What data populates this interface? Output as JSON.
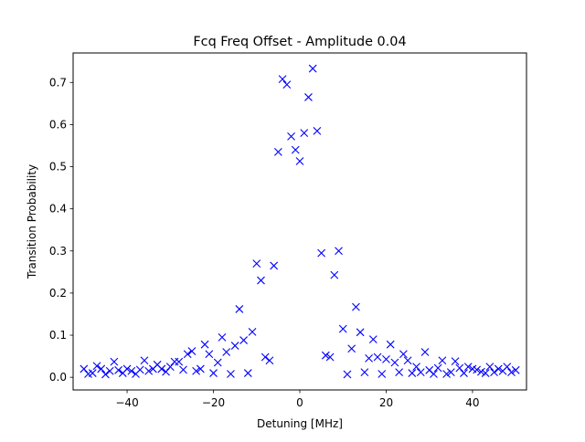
{
  "chart_data": {
    "type": "scatter",
    "title": "Fcq Freq Offset - Amplitude 0.04",
    "xlabel": "Detuning [MHz]",
    "ylabel": "Transition Probability",
    "xlim": [
      -52.5,
      52.5
    ],
    "ylim": [
      -0.03,
      0.77
    ],
    "xticks": [
      -40,
      -20,
      0,
      20,
      40
    ],
    "xtick_labels": [
      "−40",
      "−20",
      "0",
      "20",
      "40"
    ],
    "yticks": [
      0.0,
      0.1,
      0.2,
      0.3,
      0.4,
      0.5,
      0.6,
      0.7
    ],
    "ytick_labels": [
      "0.0",
      "0.1",
      "0.2",
      "0.3",
      "0.4",
      "0.5",
      "0.6",
      "0.7"
    ],
    "grid": false,
    "marker": "x",
    "marker_color": "#0000ff",
    "series": [
      {
        "x": [
          -50.0,
          -49.0,
          -48.0,
          -47.0,
          -46.0,
          -45.0,
          -44.0,
          -43.0,
          -42.0,
          -41.0,
          -40.0,
          -39.0,
          -38.0,
          -37.0,
          -36.0,
          -35.0,
          -34.0,
          -33.0,
          -32.0,
          -31.0,
          -30.0,
          -29.0,
          -28.0,
          -27.0,
          -26.0,
          -25.0,
          -24.0,
          -23.0,
          -22.0,
          -21.0,
          -20.0,
          -19.0,
          -18.0,
          -17.0,
          -16.0,
          -15.0,
          -14.0,
          -13.0,
          -12.0,
          -11.0,
          -10.0,
          -9.0,
          -8.0,
          -7.0,
          -6.0,
          -5.0,
          -4.0,
          -3.0,
          -2.0,
          -1.0,
          0.0,
          1.0,
          2.0,
          3.0,
          4.0,
          5.0,
          6.0,
          7.0,
          8.0,
          9.0,
          10.0,
          11.0,
          12.0,
          13.0,
          14.0,
          15.0,
          16.0,
          17.0,
          18.0,
          19.0,
          20.0,
          21.0,
          22.0,
          23.0,
          24.0,
          25.0,
          26.0,
          27.0,
          28.0,
          29.0,
          30.0,
          31.0,
          32.0,
          33.0,
          34.0,
          35.0,
          36.0,
          37.0,
          38.0,
          39.0,
          40.0,
          41.0,
          42.0,
          43.0,
          44.0,
          45.0,
          46.0,
          47.0,
          48.0,
          49.0,
          50.0
        ],
        "y": [
          0.02,
          0.008,
          0.01,
          0.027,
          0.02,
          0.007,
          0.015,
          0.037,
          0.017,
          0.01,
          0.02,
          0.015,
          0.008,
          0.018,
          0.04,
          0.015,
          0.02,
          0.03,
          0.02,
          0.013,
          0.025,
          0.037,
          0.037,
          0.018,
          0.055,
          0.062,
          0.015,
          0.02,
          0.078,
          0.055,
          0.01,
          0.035,
          0.095,
          0.06,
          0.008,
          0.075,
          0.162,
          0.088,
          0.01,
          0.108,
          0.27,
          0.23,
          0.048,
          0.04,
          0.265,
          0.535,
          0.708,
          0.695,
          0.572,
          0.54,
          0.513,
          0.58,
          0.665,
          0.733,
          0.585,
          0.295,
          0.052,
          0.048,
          0.243,
          0.3,
          0.115,
          0.007,
          0.068,
          0.167,
          0.107,
          0.012,
          0.045,
          0.09,
          0.048,
          0.008,
          0.043,
          0.078,
          0.035,
          0.012,
          0.055,
          0.04,
          0.01,
          0.025,
          0.012,
          0.06,
          0.017,
          0.008,
          0.022,
          0.04,
          0.008,
          0.012,
          0.038,
          0.022,
          0.01,
          0.025,
          0.02,
          0.018,
          0.013,
          0.01,
          0.025,
          0.012,
          0.02,
          0.015,
          0.025,
          0.012,
          0.017
        ]
      }
    ]
  }
}
